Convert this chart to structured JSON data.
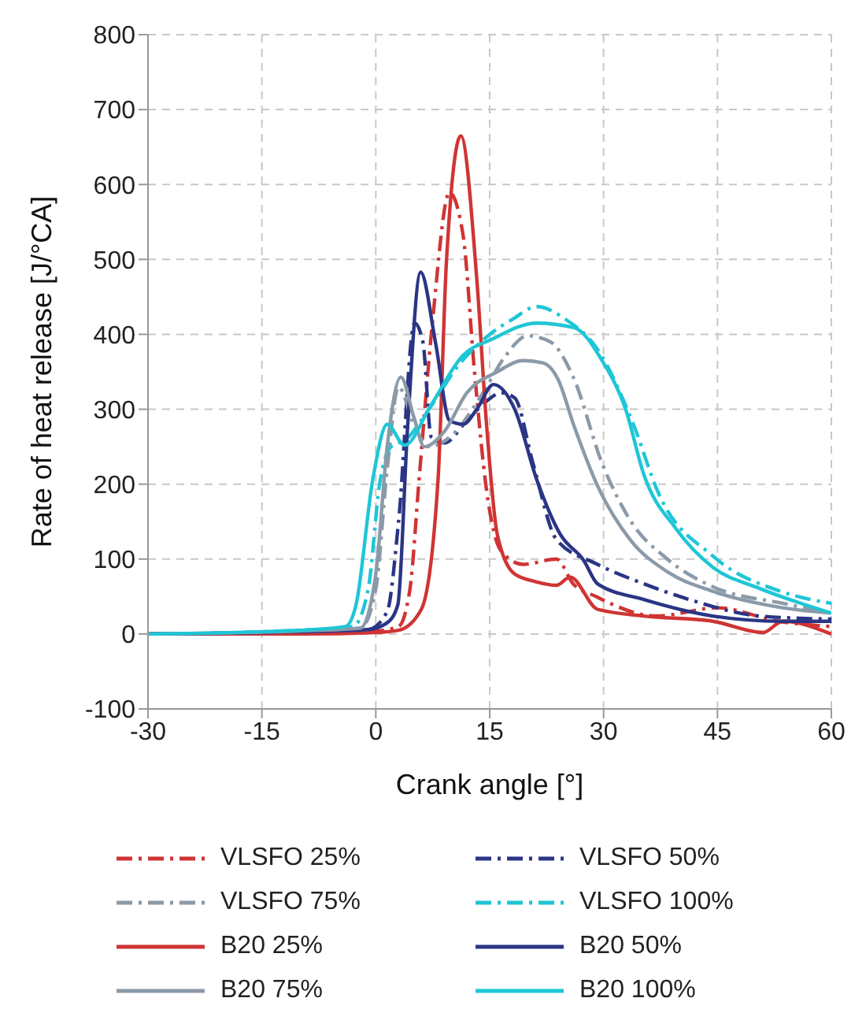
{
  "chart_data": {
    "type": "line",
    "xlabel": "Crank angle [°]",
    "ylabel": "Rate of heat release [J/°CA]",
    "xlim": [
      -30,
      60
    ],
    "xticks": [
      -30,
      -15,
      0,
      15,
      30,
      45,
      60
    ],
    "ylim": [
      -100,
      800
    ],
    "yticks": [
      -100,
      0,
      100,
      200,
      300,
      400,
      500,
      600,
      700,
      800
    ],
    "grid": true,
    "legend": "bottom",
    "marker": "none",
    "series": [
      {
        "name": "VLSFO 25%",
        "color": "#d03434",
        "line_style": "dashed",
        "x": [
          -30,
          -10,
          0,
          3,
          4.5,
          5.7,
          7.5,
          9.7,
          11.5,
          13,
          14.6,
          16.5,
          19.4,
          23.8,
          26,
          29,
          37,
          45,
          53,
          60
        ],
        "values": [
          0,
          2,
          4,
          10,
          60,
          206,
          420,
          589,
          532,
          350,
          191,
          111,
          93,
          100,
          67,
          50,
          24,
          35,
          17,
          10
        ]
      },
      {
        "name": "VLSFO 50%",
        "color": "#2b3585",
        "line_style": "dashed",
        "x": [
          -30,
          -10,
          -1,
          1.5,
          3,
          5.1,
          6.2,
          7.3,
          9,
          12,
          14.5,
          16.5,
          18.3,
          20.7,
          23.8,
          29.2,
          35.3,
          41.3,
          50.5,
          60
        ],
        "values": [
          0,
          3,
          6,
          30,
          150,
          415,
          390,
          263,
          255,
          285,
          310,
          322,
          315,
          228,
          126,
          93,
          67,
          46,
          24,
          20
        ]
      },
      {
        "name": "VLSFO 75%",
        "color": "#8b9aa8",
        "line_style": "dashed",
        "x": [
          -30,
          -10,
          -2,
          0,
          1.5,
          3,
          5,
          7,
          10,
          14,
          17,
          20,
          23,
          26,
          29.8,
          33.5,
          38.4,
          44.4,
          53.6,
          60
        ],
        "values": [
          0,
          4,
          8,
          60,
          220,
          330,
          280,
          250,
          265,
          320,
          370,
          398,
          390,
          343,
          228,
          152,
          100,
          63,
          41,
          28
        ]
      },
      {
        "name": "VLSFO 100%",
        "color": "#1ec6d6",
        "line_style": "dashed",
        "x": [
          -30,
          -10,
          -3,
          -1,
          0.5,
          2,
          4,
          7,
          11,
          15,
          18,
          21.2,
          25,
          29.2,
          34,
          37.1,
          44.4,
          53.6,
          60
        ],
        "values": [
          0,
          5,
          10,
          60,
          200,
          250,
          260,
          300,
          360,
          400,
          420,
          437,
          420,
          380,
          278,
          191,
          104,
          56,
          41
        ]
      },
      {
        "name": "B20 25%",
        "color": "#d03434",
        "line_style": "solid",
        "x": [
          -30,
          -10,
          0,
          3,
          6,
          8.2,
          9.3,
          11.2,
          13.3,
          14.6,
          16,
          18.3,
          21,
          23.8,
          25.6,
          29.2,
          35.3,
          44.4,
          51,
          53.6,
          60
        ],
        "values": [
          0,
          0,
          2,
          5,
          33,
          206,
          496,
          665,
          474,
          278,
          133,
          80,
          70,
          65,
          76,
          33,
          24,
          17,
          2,
          17,
          0
        ]
      },
      {
        "name": "B20 50%",
        "color": "#2b3585",
        "line_style": "solid",
        "x": [
          -30,
          -10,
          -1,
          1.5,
          2.9,
          4.2,
          5.9,
          7.9,
          9.7,
          11.5,
          13.3,
          15.5,
          18.3,
          21.2,
          24.3,
          27.4,
          29.2,
          35.3,
          44.4,
          53.6,
          60
        ],
        "values": [
          0,
          3,
          6,
          15,
          39,
          278,
          483,
          387,
          285,
          280,
          300,
          333,
          300,
          206,
          133,
          98,
          67,
          46,
          24,
          17,
          17
        ]
      },
      {
        "name": "B20 75%",
        "color": "#8b9aa8",
        "line_style": "solid",
        "x": [
          -30,
          -10,
          -2,
          0,
          1.5,
          3.3,
          5,
          6.4,
          9,
          12,
          16,
          19.4,
          22,
          24,
          26.1,
          29.2,
          33.5,
          38.4,
          44.4,
          53.6,
          60
        ],
        "values": [
          0,
          4,
          8,
          80,
          250,
          343,
          290,
          250,
          270,
          322,
          350,
          365,
          362,
          340,
          278,
          198,
          126,
          83,
          57,
          35,
          28
        ]
      },
      {
        "name": "B20 100%",
        "color": "#1ec6d6",
        "line_style": "solid",
        "x": [
          -30,
          -10,
          -4,
          -2.6,
          -0.4,
          1.5,
          3.8,
          7.3,
          11.5,
          15.2,
          21.2,
          26.1,
          29.8,
          32.9,
          35.3,
          39.5,
          44.4,
          50.5,
          60
        ],
        "values": [
          0,
          5,
          10,
          39,
          206,
          280,
          252,
          306,
          372,
          393,
          415,
          409,
          365,
          300,
          213,
          141,
          89,
          61,
          28
        ]
      }
    ]
  }
}
